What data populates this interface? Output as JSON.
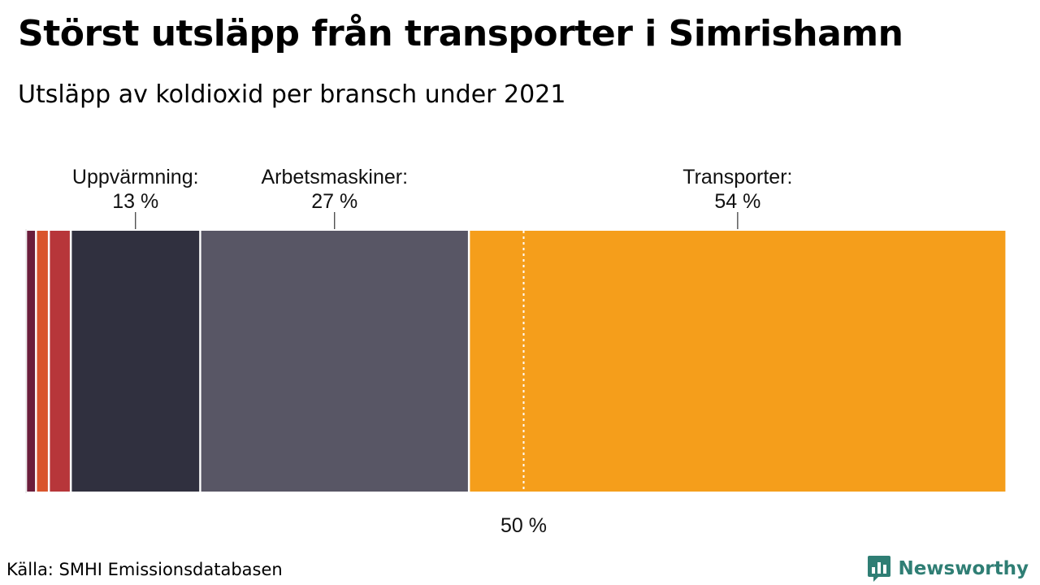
{
  "header": {
    "title": "Störst utsläpp från transporter i Simrishamn",
    "subtitle": "Utsläpp av koldioxid per bransch under 2021"
  },
  "footer": {
    "source": "Källa: SMHI Emissionsdatabasen",
    "brand": "Newsworthy",
    "brand_icon": "bar-chart-icon",
    "brand_color": "#2f7e74"
  },
  "chart_data": {
    "type": "bar",
    "orientation": "horizontal-stacked-100",
    "title": "Störst utsläpp från transporter i Simrishamn",
    "subtitle": "Utsläpp av koldioxid per bransch under 2021",
    "unit": "%",
    "xlim": [
      0,
      100
    ],
    "segments": [
      {
        "name": "",
        "value": 1,
        "color": "#6b1d3b",
        "labeled": false
      },
      {
        "name": "",
        "value": 1.3,
        "color": "#d9542c",
        "labeled": false
      },
      {
        "name": "",
        "value": 2.2,
        "color": "#b7363a",
        "labeled": false
      },
      {
        "name": "Uppvärmning",
        "value": 13,
        "label": "Uppvärmning:",
        "value_label": "13 %",
        "color": "#30303f",
        "labeled": true
      },
      {
        "name": "Arbetsmaskiner",
        "value": 27,
        "label": "Arbetsmaskiner:",
        "value_label": "27 %",
        "color": "#585665",
        "labeled": true
      },
      {
        "name": "Transporter",
        "value": 54,
        "label": "Transporter:",
        "value_label": "54 %",
        "color": "#f59e1b",
        "labeled": true
      }
    ],
    "reference_line": {
      "value": 50,
      "label": "50 %"
    }
  }
}
